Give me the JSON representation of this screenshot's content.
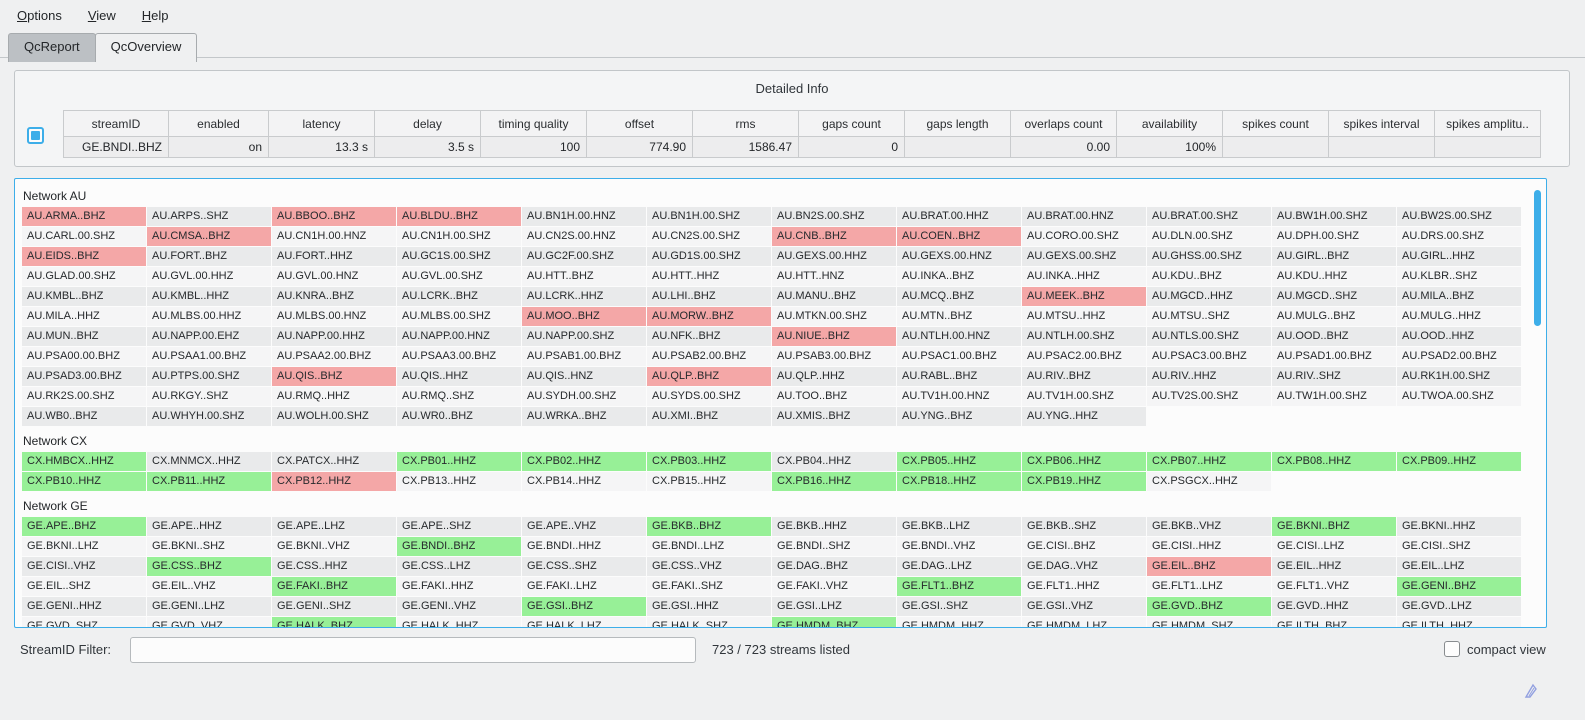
{
  "colors": {
    "accent": "#3daee9",
    "ok_green": "#97f097",
    "warn_pink": "#f4a7a7",
    "enabled_green": "#00dc00",
    "value_green": "#a7f1a7"
  },
  "menu": {
    "items": [
      {
        "label": "Options"
      },
      {
        "label": "View"
      },
      {
        "label": "Help"
      }
    ]
  },
  "tabs": [
    {
      "label": "QcReport",
      "active": false
    },
    {
      "label": "QcOverview",
      "active": true
    }
  ],
  "detail_panel": {
    "title": "Detailed Info",
    "columns": [
      "streamID",
      "enabled",
      "latency",
      "delay",
      "timing quality",
      "offset",
      "rms",
      "gaps count",
      "gaps length",
      "overlaps count",
      "availability",
      "spikes count",
      "spikes interval",
      "spikes amplitu.."
    ],
    "row": [
      {
        "text": "GE.BNDI..BHZ",
        "state": "id"
      },
      {
        "text": "on",
        "state": "bright"
      },
      {
        "text": "13.3 s",
        "state": "green"
      },
      {
        "text": "3.5 s",
        "state": "green"
      },
      {
        "text": "100",
        "state": "green"
      },
      {
        "text": "774.90",
        "state": "green"
      },
      {
        "text": "1586.47",
        "state": "green"
      },
      {
        "text": "0",
        "state": "green"
      },
      {
        "text": "",
        "state": "plain"
      },
      {
        "text": "0.00",
        "state": "green"
      },
      {
        "text": "100%",
        "state": "green"
      },
      {
        "text": "",
        "state": "plain"
      },
      {
        "text": "",
        "state": "plain"
      },
      {
        "text": "",
        "state": "plain"
      }
    ]
  },
  "grid": {
    "networks": [
      {
        "label": "Network AU",
        "rows": [
          [
            [
              "AU.ARMA..BHZ",
              "warn"
            ],
            "AU.ARPS..SHZ",
            [
              "AU.BBOO..BHZ",
              "warn"
            ],
            [
              "AU.BLDU..BHZ",
              "warn"
            ],
            "AU.BN1H.00.HNZ",
            "AU.BN1H.00.SHZ",
            "AU.BN2S.00.SHZ",
            "AU.BRAT.00.HHZ",
            "AU.BRAT.00.HNZ",
            "AU.BRAT.00.SHZ",
            "AU.BW1H.00.SHZ",
            "AU.BW2S.00.SHZ"
          ],
          [
            "AU.CARL.00.SHZ",
            [
              "AU.CMSA..BHZ",
              "warn"
            ],
            "AU.CN1H.00.HNZ",
            "AU.CN1H.00.SHZ",
            "AU.CN2S.00.HNZ",
            "AU.CN2S.00.SHZ",
            [
              "AU.CNB..BHZ",
              "warn"
            ],
            [
              "AU.COEN..BHZ",
              "warn"
            ],
            "AU.CORO.00.SHZ",
            "AU.DLN.00.SHZ",
            "AU.DPH.00.SHZ",
            "AU.DRS.00.SHZ"
          ],
          [
            [
              "AU.EIDS..BHZ",
              "warn"
            ],
            "AU.FORT..BHZ",
            "AU.FORT..HHZ",
            "AU.GC1S.00.SHZ",
            "AU.GC2F.00.SHZ",
            "AU.GD1S.00.SHZ",
            "AU.GEXS.00.HHZ",
            "AU.GEXS.00.HNZ",
            "AU.GEXS.00.SHZ",
            "AU.GHSS.00.SHZ",
            "AU.GIRL..BHZ",
            "AU.GIRL..HHZ"
          ],
          [
            "AU.GLAD.00.SHZ",
            "AU.GVL.00.HHZ",
            "AU.GVL.00.HNZ",
            "AU.GVL.00.SHZ",
            "AU.HTT..BHZ",
            "AU.HTT..HHZ",
            "AU.HTT..HNZ",
            "AU.INKA..BHZ",
            "AU.INKA..HHZ",
            "AU.KDU..BHZ",
            "AU.KDU..HHZ",
            "AU.KLBR..SHZ"
          ],
          [
            "AU.KMBL..BHZ",
            "AU.KMBL..HHZ",
            "AU.KNRA..BHZ",
            "AU.LCRK..BHZ",
            "AU.LCRK..HHZ",
            "AU.LHI..BHZ",
            "AU.MANU..BHZ",
            "AU.MCQ..BHZ",
            [
              "AU.MEEK..BHZ",
              "warn"
            ],
            "AU.MGCD..HHZ",
            "AU.MGCD..SHZ",
            "AU.MILA..BHZ"
          ],
          [
            "AU.MILA..HHZ",
            "AU.MLBS.00.HHZ",
            "AU.MLBS.00.HNZ",
            "AU.MLBS.00.SHZ",
            [
              "AU.MOO..BHZ",
              "warn"
            ],
            [
              "AU.MORW..BHZ",
              "warn"
            ],
            "AU.MTKN.00.SHZ",
            "AU.MTN..BHZ",
            "AU.MTSU..HHZ",
            "AU.MTSU..SHZ",
            "AU.MULG..BHZ",
            "AU.MULG..HHZ"
          ],
          [
            "AU.MUN..BHZ",
            "AU.NAPP.00.EHZ",
            "AU.NAPP.00.HHZ",
            "AU.NAPP.00.HNZ",
            "AU.NAPP.00.SHZ",
            "AU.NFK..BHZ",
            [
              "AU.NIUE..BHZ",
              "warn"
            ],
            "AU.NTLH.00.HNZ",
            "AU.NTLH.00.SHZ",
            "AU.NTLS.00.SHZ",
            "AU.OOD..BHZ",
            "AU.OOD..HHZ"
          ],
          [
            "AU.PSA00.00.BHZ",
            "AU.PSAA1.00.BHZ",
            "AU.PSAA2.00.BHZ",
            "AU.PSAA3.00.BHZ",
            "AU.PSAB1.00.BHZ",
            "AU.PSAB2.00.BHZ",
            "AU.PSAB3.00.BHZ",
            "AU.PSAC1.00.BHZ",
            "AU.PSAC2.00.BHZ",
            "AU.PSAC3.00.BHZ",
            "AU.PSAD1.00.BHZ",
            "AU.PSAD2.00.BHZ"
          ],
          [
            "AU.PSAD3.00.BHZ",
            "AU.PTPS.00.SHZ",
            [
              "AU.QIS..BHZ",
              "warn"
            ],
            "AU.QIS..HHZ",
            "AU.QIS..HNZ",
            [
              "AU.QLP..BHZ",
              "warn"
            ],
            "AU.QLP..HHZ",
            "AU.RABL..BHZ",
            "AU.RIV..BHZ",
            "AU.RIV..HHZ",
            "AU.RIV..SHZ",
            "AU.RK1H.00.SHZ"
          ],
          [
            "AU.RK2S.00.SHZ",
            "AU.RKGY..SHZ",
            "AU.RMQ..HHZ",
            "AU.RMQ..SHZ",
            "AU.SYDH.00.SHZ",
            "AU.SYDS.00.SHZ",
            "AU.TOO..BHZ",
            "AU.TV1H.00.HNZ",
            "AU.TV1H.00.SHZ",
            "AU.TV2S.00.SHZ",
            "AU.TW1H.00.SHZ",
            "AU.TWOA.00.SHZ"
          ],
          [
            "AU.WB0..BHZ",
            "AU.WHYH.00.SHZ",
            "AU.WOLH.00.SHZ",
            "AU.WR0..BHZ",
            "AU.WRKA..BHZ",
            "AU.XMI..BHZ",
            "AU.XMIS..BHZ",
            "AU.YNG..BHZ",
            "AU.YNG..HHZ"
          ]
        ]
      },
      {
        "label": "Network CX",
        "rows": [
          [
            [
              "CX.HMBCX..HHZ",
              "ok"
            ],
            "CX.MNMCX..HHZ",
            [
              "CX.PATCX..HHZ",
              "disabled"
            ],
            [
              "CX.PB01..HHZ",
              "ok"
            ],
            [
              "CX.PB02..HHZ",
              "ok"
            ],
            [
              "CX.PB03..HHZ",
              "ok"
            ],
            "CX.PB04..HHZ",
            [
              "CX.PB05..HHZ",
              "ok"
            ],
            [
              "CX.PB06..HHZ",
              "ok"
            ],
            [
              "CX.PB07..HHZ",
              "ok"
            ],
            [
              "CX.PB08..HHZ",
              "ok"
            ],
            [
              "CX.PB09..HHZ",
              "ok"
            ]
          ],
          [
            [
              "CX.PB10..HHZ",
              "ok"
            ],
            [
              "CX.PB11..HHZ",
              "ok"
            ],
            [
              "CX.PB12..HHZ",
              "warn"
            ],
            [
              "CX.PB13..HHZ",
              "disabled"
            ],
            [
              "CX.PB14..HHZ",
              "disabled"
            ],
            "CX.PB15..HHZ",
            [
              "CX.PB16..HHZ",
              "ok"
            ],
            [
              "CX.PB18..HHZ",
              "ok"
            ],
            [
              "CX.PB19..HHZ",
              "ok"
            ],
            "CX.PSGCX..HHZ"
          ]
        ]
      },
      {
        "label": "Network GE",
        "rows": [
          [
            [
              "GE.APE..BHZ",
              "ok"
            ],
            "GE.APE..HHZ",
            "GE.APE..LHZ",
            "GE.APE..SHZ",
            "GE.APE..VHZ",
            [
              "GE.BKB..BHZ",
              "ok"
            ],
            "GE.BKB..HHZ",
            "GE.BKB..LHZ",
            "GE.BKB..SHZ",
            "GE.BKB..VHZ",
            [
              "GE.BKNI..BHZ",
              "ok"
            ],
            "GE.BKNI..HHZ"
          ],
          [
            "GE.BKNI..LHZ",
            "GE.BKNI..SHZ",
            "GE.BKNI..VHZ",
            [
              "GE.BNDI..BHZ",
              "ok"
            ],
            "GE.BNDI..HHZ",
            "GE.BNDI..LHZ",
            "GE.BNDI..SHZ",
            "GE.BNDI..VHZ",
            "GE.CISI..BHZ",
            "GE.CISI..HHZ",
            "GE.CISI..LHZ",
            "GE.CISI..SHZ"
          ],
          [
            "GE.CISI..VHZ",
            [
              "GE.CSS..BHZ",
              "ok"
            ],
            "GE.CSS..HHZ",
            "GE.CSS..LHZ",
            "GE.CSS..SHZ",
            "GE.CSS..VHZ",
            "GE.DAG..BHZ",
            "GE.DAG..LHZ",
            "GE.DAG..VHZ",
            [
              "GE.EIL..BHZ",
              "warn"
            ],
            "GE.EIL..HHZ",
            "GE.EIL..LHZ"
          ],
          [
            "GE.EIL..SHZ",
            "GE.EIL..VHZ",
            [
              "GE.FAKI..BHZ",
              "ok"
            ],
            "GE.FAKI..HHZ",
            "GE.FAKI..LHZ",
            "GE.FAKI..SHZ",
            "GE.FAKI..VHZ",
            [
              "GE.FLT1..BHZ",
              "ok"
            ],
            "GE.FLT1..HHZ",
            "GE.FLT1..LHZ",
            "GE.FLT1..VHZ",
            [
              "GE.GENI..BHZ",
              "ok"
            ]
          ],
          [
            "GE.GENI..HHZ",
            "GE.GENI..LHZ",
            "GE.GENI..SHZ",
            "GE.GENI..VHZ",
            [
              "GE.GSI..BHZ",
              "ok"
            ],
            "GE.GSI..HHZ",
            "GE.GSI..LHZ",
            "GE.GSI..SHZ",
            "GE.GSI..VHZ",
            [
              "GE.GVD..BHZ",
              "ok"
            ],
            "GE.GVD..HHZ",
            "GE.GVD..LHZ"
          ],
          [
            "GE.GVD..SHZ",
            "GE.GVD..VHZ",
            [
              "GE.HALK..BHZ",
              "ok"
            ],
            "GE.HALK..HHZ",
            "GE.HALK..LHZ",
            "GE.HALK..SHZ",
            [
              "GE.HMDM..BHZ",
              "ok"
            ],
            "GE.HMDM..HHZ",
            "GE.HMDM..LHZ",
            "GE.HMDM..SHZ",
            "GE.ILTH..BHZ",
            "GE.ILTH..HHZ"
          ]
        ]
      }
    ]
  },
  "statusbar": {
    "filter_label": "StreamID Filter:",
    "filter_value": "",
    "streams_listed": "723 / 723 streams listed",
    "compact_view_label": "compact view"
  }
}
